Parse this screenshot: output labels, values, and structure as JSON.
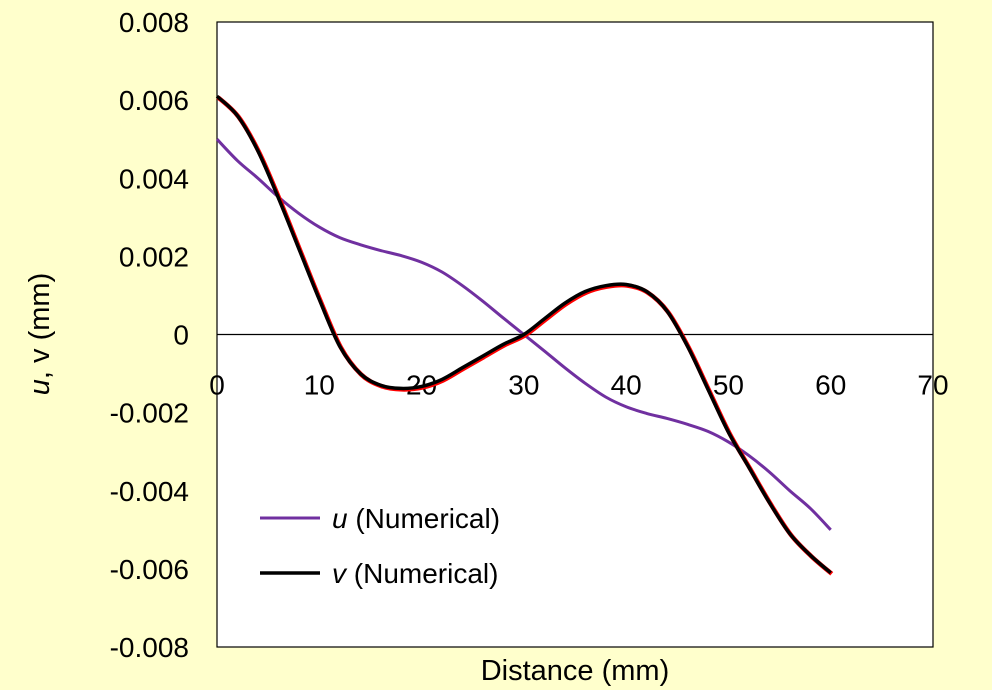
{
  "colors": {
    "background": "#ffffcc",
    "u_series": "#7030a0",
    "v_series": "#000000",
    "v_shadow": "#ff0000"
  },
  "chart_data": {
    "type": "line",
    "xlabel": "Distance (mm)",
    "ylabel_italic": "u",
    "ylabel_rest": ", v (mm)",
    "xlim": [
      0,
      70
    ],
    "ylim": [
      -0.008,
      0.008
    ],
    "x_ticks": [
      "0",
      "10",
      "20",
      "30",
      "40",
      "50",
      "60",
      "70"
    ],
    "y_ticks": [
      "0.008",
      "0.006",
      "0.004",
      "0.002",
      "0",
      "-0.002",
      "-0.004",
      "-0.006",
      "-0.008"
    ],
    "grid": false,
    "legend_position": "bottom-left",
    "series": [
      {
        "name_italic": "u",
        "name_rest": " (Numerical)",
        "x": [
          0,
          2,
          4,
          6,
          8,
          10,
          12,
          14,
          16,
          18,
          20,
          22,
          24,
          26,
          28,
          30,
          32,
          34,
          36,
          38,
          40,
          42,
          44,
          46,
          48,
          50,
          52,
          54,
          56,
          58,
          60
        ],
        "values": [
          0.005,
          0.00445,
          0.004,
          0.00352,
          0.0031,
          0.00275,
          0.00248,
          0.0023,
          0.00215,
          0.00202,
          0.00185,
          0.0016,
          0.00125,
          0.00085,
          0.00042,
          0.0,
          -0.00042,
          -0.00085,
          -0.00125,
          -0.0016,
          -0.00185,
          -0.00202,
          -0.00215,
          -0.0023,
          -0.00248,
          -0.00275,
          -0.0031,
          -0.00352,
          -0.004,
          -0.00445,
          -0.005
        ]
      },
      {
        "name_italic": "v",
        "name_rest": " (Numerical)",
        "x": [
          0,
          2,
          4,
          6,
          8,
          10,
          12,
          14,
          16,
          18,
          20,
          22,
          24,
          26,
          28,
          30,
          32,
          34,
          36,
          38,
          40,
          42,
          44,
          46,
          48,
          50,
          52,
          54,
          56,
          58,
          60
        ],
        "values": [
          0.0061,
          0.0056,
          0.0047,
          0.0035,
          0.0022,
          0.0009,
          -0.0003,
          -0.001,
          -0.0013,
          -0.00138,
          -0.00133,
          -0.00115,
          -0.00085,
          -0.00055,
          -0.00025,
          0.0,
          0.0004,
          0.0008,
          0.0011,
          0.00125,
          0.00128,
          0.0011,
          0.0006,
          -0.0003,
          -0.0014,
          -0.0025,
          -0.0034,
          -0.0043,
          -0.0051,
          -0.00565,
          -0.0061
        ]
      }
    ]
  }
}
